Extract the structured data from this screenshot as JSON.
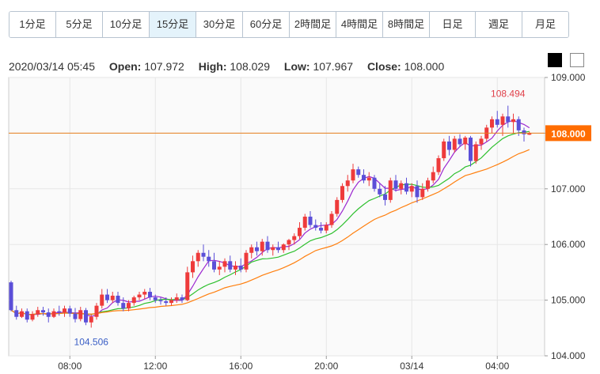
{
  "tabs": [
    {
      "label": "1分足"
    },
    {
      "label": "5分足"
    },
    {
      "label": "10分足"
    },
    {
      "label": "15分足",
      "active": true
    },
    {
      "label": "30分足"
    },
    {
      "label": "60分足"
    },
    {
      "label": "2時間足"
    },
    {
      "label": "4時間足"
    },
    {
      "label": "8時間足"
    },
    {
      "label": "日足"
    },
    {
      "label": "週足"
    },
    {
      "label": "月足"
    }
  ],
  "ohlc": {
    "datetime": "2020/03/14 05:45",
    "open_label": "Open:",
    "open": "107.972",
    "high_label": "High:",
    "high": "108.029",
    "low_label": "Low:",
    "low": "107.967",
    "close_label": "Close:",
    "close": "108.000"
  },
  "theme_buttons": {
    "dark_color": "#000000",
    "light_color": "#ffffff"
  },
  "chart_data": {
    "type": "candlestick",
    "x_tick_labels": [
      "08:00",
      "12:00",
      "16:00",
      "20:00",
      "03/14",
      "04:00"
    ],
    "x_tick_index": [
      11,
      27,
      43,
      59,
      75,
      91
    ],
    "y_ticks": [
      "104.000",
      "105.000",
      "106.000",
      "107.000",
      "108.000",
      "109.000"
    ],
    "ylim": [
      104.0,
      109.0
    ],
    "current_price": "108.000",
    "current_price_value": 108.0,
    "annotations": [
      {
        "text": "108.494",
        "index": 93,
        "value": 108.494,
        "position": "above",
        "color": "#e0404a"
      },
      {
        "text": "104.506",
        "index": 15,
        "value": 104.506,
        "position": "below",
        "color": "#3b5fc6"
      }
    ],
    "colors": {
      "up": "#ee3b3b",
      "down": "#5b4fd8",
      "ma_short": "#9c27d0",
      "ma_mid": "#2ec02e",
      "ma_long": "#ff7f0e",
      "price_line": "#e8801f",
      "price_box": "#ff6d00"
    },
    "ohlc": [
      [
        105.32,
        105.35,
        104.8,
        104.82
      ],
      [
        104.82,
        104.9,
        104.65,
        104.7
      ],
      [
        104.7,
        104.85,
        104.68,
        104.8
      ],
      [
        104.8,
        104.85,
        104.6,
        104.65
      ],
      [
        104.65,
        104.8,
        104.62,
        104.75
      ],
      [
        104.75,
        104.88,
        104.7,
        104.82
      ],
      [
        104.82,
        104.88,
        104.72,
        104.78
      ],
      [
        104.78,
        104.85,
        104.6,
        104.7
      ],
      [
        104.7,
        104.85,
        104.68,
        104.8
      ],
      [
        104.8,
        104.9,
        104.72,
        104.78
      ],
      [
        104.78,
        104.9,
        104.7,
        104.85
      ],
      [
        104.85,
        104.9,
        104.7,
        104.76
      ],
      [
        104.76,
        104.86,
        104.6,
        104.66
      ],
      [
        104.66,
        104.88,
        104.62,
        104.82
      ],
      [
        104.82,
        104.86,
        104.55,
        104.6
      ],
      [
        104.6,
        104.75,
        104.506,
        104.7
      ],
      [
        104.7,
        104.95,
        104.65,
        104.9
      ],
      [
        104.9,
        105.2,
        104.85,
        105.1
      ],
      [
        105.1,
        105.2,
        104.95,
        105.0
      ],
      [
        105.0,
        105.15,
        104.95,
        105.08
      ],
      [
        105.08,
        105.15,
        104.9,
        104.95
      ],
      [
        104.95,
        105.05,
        104.8,
        104.85
      ],
      [
        104.85,
        105.0,
        104.8,
        104.95
      ],
      [
        104.95,
        105.08,
        104.9,
        105.05
      ],
      [
        105.05,
        105.15,
        105.0,
        105.1
      ],
      [
        105.1,
        105.2,
        105.02,
        105.15
      ],
      [
        105.15,
        105.22,
        105.0,
        105.05
      ],
      [
        105.05,
        105.1,
        104.95,
        105.0
      ],
      [
        105.0,
        105.05,
        104.92,
        104.98
      ],
      [
        104.98,
        105.05,
        104.9,
        104.95
      ],
      [
        104.95,
        105.05,
        104.9,
        105.0
      ],
      [
        105.0,
        105.12,
        104.95,
        105.05
      ],
      [
        105.05,
        105.1,
        104.95,
        105.0
      ],
      [
        105.0,
        105.6,
        104.98,
        105.5
      ],
      [
        105.5,
        105.8,
        105.4,
        105.7
      ],
      [
        105.7,
        105.9,
        105.6,
        105.85
      ],
      [
        105.85,
        106.0,
        105.7,
        105.78
      ],
      [
        105.78,
        105.9,
        105.6,
        105.7
      ],
      [
        105.7,
        105.85,
        105.5,
        105.55
      ],
      [
        105.55,
        105.7,
        105.45,
        105.6
      ],
      [
        105.6,
        105.75,
        105.5,
        105.7
      ],
      [
        105.7,
        105.8,
        105.5,
        105.55
      ],
      [
        105.55,
        105.7,
        105.45,
        105.62
      ],
      [
        105.62,
        105.75,
        105.5,
        105.55
      ],
      [
        105.55,
        105.9,
        105.5,
        105.85
      ],
      [
        105.85,
        106.0,
        105.75,
        105.95
      ],
      [
        105.95,
        106.05,
        105.8,
        105.88
      ],
      [
        105.88,
        106.1,
        105.8,
        106.05
      ],
      [
        106.05,
        106.15,
        105.85,
        105.9
      ],
      [
        105.9,
        106.0,
        105.8,
        105.95
      ],
      [
        105.95,
        106.05,
        105.85,
        105.9
      ],
      [
        105.9,
        106.02,
        105.85,
        106.0
      ],
      [
        106.0,
        106.1,
        105.9,
        106.08
      ],
      [
        106.08,
        106.2,
        106.0,
        106.15
      ],
      [
        106.15,
        106.4,
        106.1,
        106.3
      ],
      [
        106.3,
        106.55,
        106.25,
        106.5
      ],
      [
        106.5,
        106.6,
        106.3,
        106.35
      ],
      [
        106.35,
        106.45,
        106.25,
        106.3
      ],
      [
        106.3,
        106.4,
        106.2,
        106.25
      ],
      [
        106.25,
        106.4,
        106.2,
        106.35
      ],
      [
        106.35,
        106.6,
        106.3,
        106.55
      ],
      [
        106.55,
        106.85,
        106.5,
        106.8
      ],
      [
        106.8,
        107.1,
        106.75,
        107.05
      ],
      [
        107.05,
        107.25,
        106.95,
        107.15
      ],
      [
        107.15,
        107.45,
        107.1,
        107.35
      ],
      [
        107.35,
        107.4,
        107.2,
        107.25
      ],
      [
        107.25,
        107.35,
        107.1,
        107.15
      ],
      [
        107.15,
        107.3,
        107.05,
        107.2
      ],
      [
        107.2,
        107.25,
        106.95,
        107.0
      ],
      [
        107.0,
        107.1,
        106.85,
        106.9
      ],
      [
        106.9,
        107.05,
        106.7,
        106.8
      ],
      [
        106.8,
        107.2,
        106.75,
        107.15
      ],
      [
        107.15,
        107.25,
        106.95,
        107.0
      ],
      [
        107.0,
        107.15,
        106.9,
        107.1
      ],
      [
        107.1,
        107.2,
        106.9,
        106.95
      ],
      [
        106.95,
        107.1,
        106.85,
        107.05
      ],
      [
        107.05,
        107.15,
        106.75,
        106.85
      ],
      [
        106.85,
        107.1,
        106.8,
        107.0
      ],
      [
        107.0,
        107.2,
        106.95,
        107.15
      ],
      [
        107.15,
        107.4,
        107.1,
        107.3
      ],
      [
        107.3,
        107.6,
        107.25,
        107.55
      ],
      [
        107.55,
        107.9,
        107.5,
        107.85
      ],
      [
        107.85,
        107.95,
        107.6,
        107.7
      ],
      [
        107.7,
        107.95,
        107.65,
        107.9
      ],
      [
        107.9,
        107.98,
        107.75,
        107.8
      ],
      [
        107.8,
        107.95,
        107.7,
        107.92
      ],
      [
        107.92,
        107.95,
        107.4,
        107.5
      ],
      [
        107.5,
        107.85,
        107.45,
        107.8
      ],
      [
        107.8,
        107.95,
        107.7,
        107.9
      ],
      [
        107.9,
        108.15,
        107.85,
        108.1
      ],
      [
        108.1,
        108.3,
        108.0,
        108.25
      ],
      [
        108.25,
        108.4,
        108.1,
        108.15
      ],
      [
        108.15,
        108.35,
        107.95,
        108.3
      ],
      [
        108.3,
        108.494,
        108.1,
        108.2
      ],
      [
        108.2,
        108.35,
        108.0,
        108.25
      ],
      [
        108.25,
        108.3,
        107.95,
        108.05
      ],
      [
        108.05,
        108.1,
        107.85,
        107.98
      ],
      [
        107.972,
        108.029,
        107.967,
        108.0
      ]
    ]
  }
}
